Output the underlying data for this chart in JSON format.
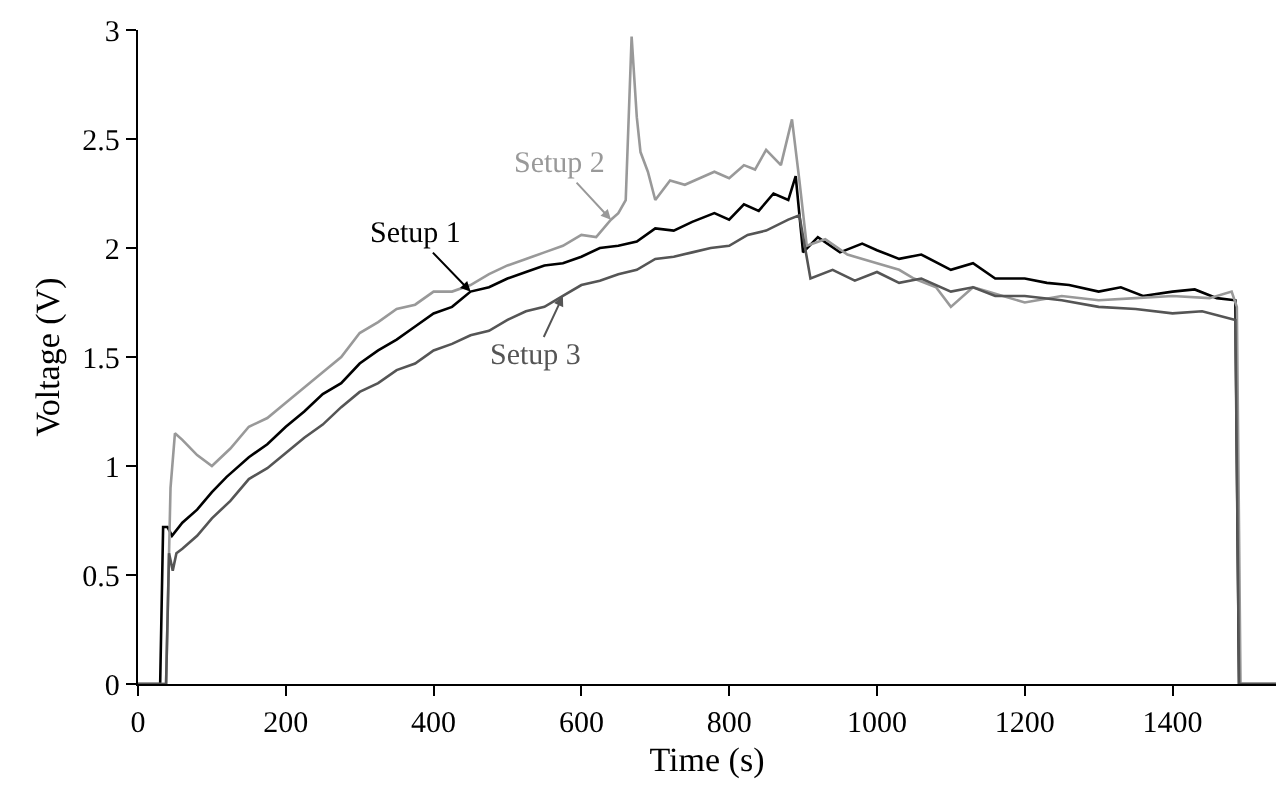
{
  "chart_data": {
    "type": "line",
    "xlabel": "Time (s)",
    "ylabel": "Voltage (V)",
    "xlim": [
      0,
      1540
    ],
    "ylim": [
      0,
      3
    ],
    "xticks": [
      0,
      200,
      400,
      600,
      800,
      1000,
      1200,
      1400
    ],
    "yticks": [
      0,
      0.5,
      1,
      1.5,
      2,
      2.5,
      3
    ],
    "marker": "none",
    "line_style": "solid",
    "series": [
      {
        "name": "Setup 1",
        "color": "#000000",
        "x": [
          0,
          30,
          34,
          40,
          46,
          60,
          80,
          100,
          120,
          150,
          175,
          200,
          225,
          250,
          275,
          300,
          325,
          350,
          375,
          400,
          425,
          450,
          475,
          500,
          525,
          550,
          575,
          600,
          625,
          650,
          675,
          700,
          725,
          750,
          780,
          800,
          820,
          840,
          860,
          880,
          890,
          900,
          920,
          950,
          980,
          1000,
          1030,
          1060,
          1100,
          1130,
          1160,
          1200,
          1230,
          1260,
          1300,
          1330,
          1360,
          1400,
          1430,
          1460,
          1485,
          1490,
          1540
        ],
        "values": [
          0,
          0,
          0.72,
          0.72,
          0.68,
          0.74,
          0.8,
          0.88,
          0.95,
          1.04,
          1.1,
          1.18,
          1.25,
          1.33,
          1.38,
          1.47,
          1.53,
          1.58,
          1.64,
          1.7,
          1.73,
          1.8,
          1.82,
          1.86,
          1.89,
          1.92,
          1.93,
          1.96,
          2.0,
          2.01,
          2.03,
          2.09,
          2.08,
          2.12,
          2.16,
          2.13,
          2.2,
          2.17,
          2.25,
          2.22,
          2.33,
          1.98,
          2.05,
          1.98,
          2.02,
          1.99,
          1.95,
          1.97,
          1.9,
          1.93,
          1.86,
          1.86,
          1.84,
          1.83,
          1.8,
          1.82,
          1.78,
          1.8,
          1.81,
          1.77,
          1.76,
          0,
          0
        ]
      },
      {
        "name": "Setup 2",
        "color": "#999999",
        "x": [
          0,
          38,
          44,
          50,
          60,
          80,
          100,
          125,
          150,
          175,
          200,
          225,
          250,
          275,
          300,
          325,
          350,
          375,
          400,
          425,
          450,
          475,
          500,
          525,
          550,
          575,
          600,
          620,
          640,
          650,
          660,
          668,
          675,
          680,
          690,
          700,
          720,
          740,
          760,
          780,
          800,
          820,
          835,
          850,
          870,
          885,
          895,
          905,
          930,
          960,
          1000,
          1030,
          1050,
          1080,
          1100,
          1130,
          1150,
          1200,
          1250,
          1300,
          1350,
          1400,
          1450,
          1480,
          1487,
          1492,
          1540
        ],
        "values": [
          0,
          0,
          0.9,
          1.15,
          1.12,
          1.05,
          1.0,
          1.08,
          1.18,
          1.22,
          1.29,
          1.36,
          1.43,
          1.5,
          1.61,
          1.66,
          1.72,
          1.74,
          1.8,
          1.8,
          1.83,
          1.88,
          1.92,
          1.95,
          1.98,
          2.01,
          2.06,
          2.05,
          2.13,
          2.16,
          2.22,
          2.97,
          2.6,
          2.44,
          2.35,
          2.22,
          2.31,
          2.29,
          2.32,
          2.35,
          2.32,
          2.38,
          2.36,
          2.45,
          2.38,
          2.59,
          2.31,
          2.01,
          2.04,
          1.97,
          1.93,
          1.9,
          1.86,
          1.82,
          1.73,
          1.82,
          1.8,
          1.75,
          1.78,
          1.76,
          1.77,
          1.78,
          1.77,
          1.8,
          1.73,
          0,
          0
        ]
      },
      {
        "name": "Setup 3",
        "color": "#555555",
        "x": [
          0,
          38,
          42,
          47,
          52,
          60,
          80,
          100,
          125,
          150,
          175,
          200,
          225,
          250,
          275,
          300,
          325,
          350,
          375,
          400,
          425,
          450,
          475,
          500,
          525,
          550,
          575,
          600,
          625,
          650,
          675,
          700,
          725,
          750,
          775,
          800,
          825,
          850,
          880,
          895,
          910,
          940,
          970,
          1000,
          1030,
          1060,
          1100,
          1130,
          1160,
          1200,
          1250,
          1300,
          1350,
          1400,
          1440,
          1485,
          1490,
          1540
        ],
        "values": [
          0,
          0,
          0.6,
          0.52,
          0.6,
          0.62,
          0.68,
          0.76,
          0.84,
          0.94,
          0.99,
          1.06,
          1.13,
          1.19,
          1.27,
          1.34,
          1.38,
          1.44,
          1.47,
          1.53,
          1.56,
          1.6,
          1.62,
          1.67,
          1.71,
          1.73,
          1.78,
          1.83,
          1.85,
          1.88,
          1.9,
          1.95,
          1.96,
          1.98,
          2.0,
          2.01,
          2.06,
          2.08,
          2.13,
          2.15,
          1.86,
          1.9,
          1.85,
          1.89,
          1.84,
          1.86,
          1.8,
          1.82,
          1.78,
          1.78,
          1.76,
          1.73,
          1.72,
          1.7,
          1.71,
          1.67,
          0,
          0
        ]
      }
    ]
  }
}
